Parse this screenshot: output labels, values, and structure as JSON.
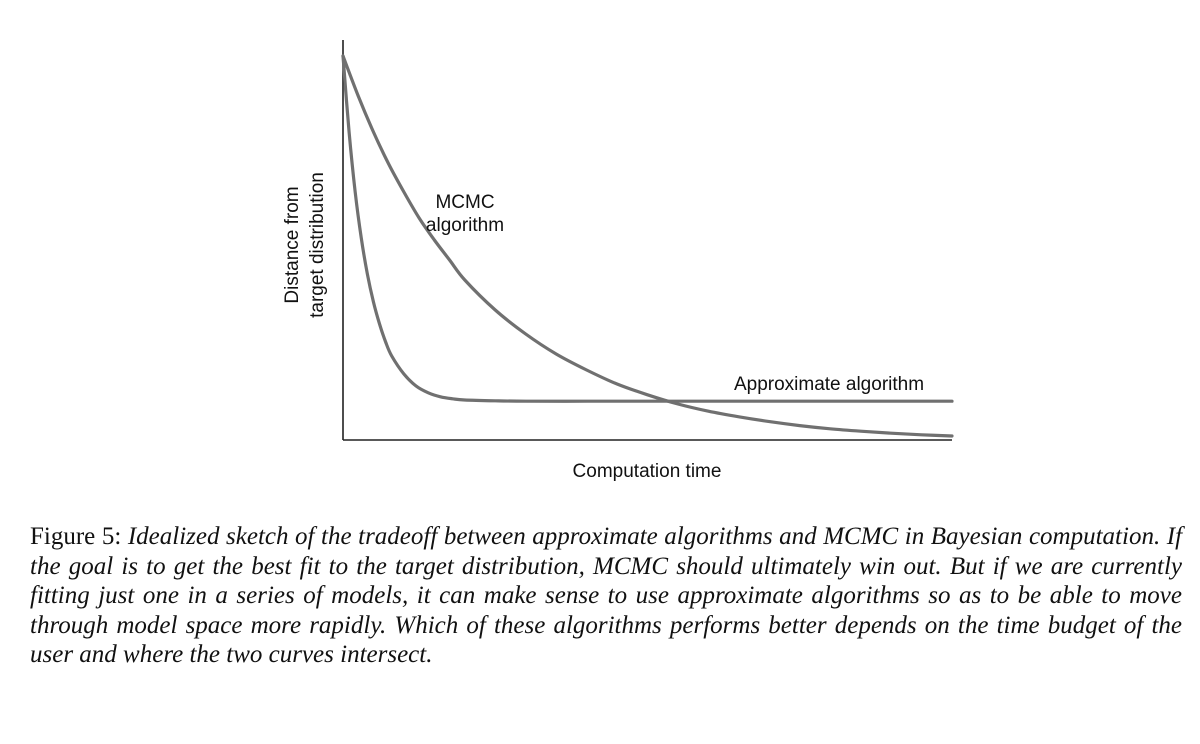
{
  "chart_data": {
    "type": "line",
    "title": "",
    "xlabel": "Computation time",
    "ylabel_lines": [
      "Distance from",
      "target distribution"
    ],
    "xlim": [
      0,
      10
    ],
    "ylim": [
      0,
      1
    ],
    "grid": false,
    "axis_ticks": "none",
    "series": [
      {
        "name": "MCMC algorithm",
        "label_lines": [
          "MCMC",
          "algorithm"
        ],
        "color": "#707070",
        "x": [
          0,
          0.25,
          0.5,
          0.75,
          1,
          1.25,
          1.5,
          1.75,
          2,
          2.5,
          3,
          3.5,
          4,
          4.5,
          5,
          5.5,
          6,
          6.5,
          7,
          7.5,
          8,
          8.5,
          9,
          9.5,
          10
        ],
        "y": [
          0.96,
          0.86,
          0.77,
          0.69,
          0.62,
          0.555,
          0.5,
          0.45,
          0.4,
          0.325,
          0.265,
          0.215,
          0.175,
          0.14,
          0.113,
          0.09,
          0.072,
          0.058,
          0.046,
          0.036,
          0.028,
          0.022,
          0.017,
          0.013,
          0.01
        ]
      },
      {
        "name": "Approximate algorithm",
        "label_lines": [
          "Approximate algorithm"
        ],
        "color": "#707070",
        "x": [
          0,
          0.1,
          0.2,
          0.3,
          0.4,
          0.5,
          0.6,
          0.7,
          0.8,
          1.0,
          1.2,
          1.4,
          1.6,
          1.8,
          2.0,
          2.5,
          3,
          4,
          5,
          6,
          7,
          8,
          9,
          10
        ],
        "y": [
          0.96,
          0.77,
          0.62,
          0.505,
          0.415,
          0.345,
          0.29,
          0.245,
          0.21,
          0.165,
          0.135,
          0.118,
          0.108,
          0.103,
          0.1,
          0.098,
          0.097,
          0.097,
          0.097,
          0.097,
          0.097,
          0.097,
          0.097,
          0.097
        ]
      }
    ],
    "axis_color": "#222222"
  },
  "caption": {
    "label": "Figure 5:",
    "text": "Idealized sketch of the tradeoff between approximate algorithms and MCMC in Bayesian computation. If the goal is to get the best fit to the target distribution, MCMC should ultimately win out. But if we are currently fitting just one in a series of models, it can make sense to use approximate algorithms so as to be able to move through model space more rapidly. Which of these algorithms performs better depends on the time budget of the user and where the two curves intersect."
  }
}
